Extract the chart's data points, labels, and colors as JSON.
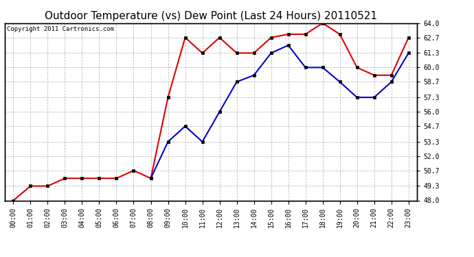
{
  "title": "Outdoor Temperature (vs) Dew Point (Last 24 Hours) 20110521",
  "copyright_text": "Copyright 2011 Cartronics.com",
  "x_labels": [
    "00:00",
    "01:00",
    "02:00",
    "03:00",
    "04:00",
    "05:00",
    "06:00",
    "07:00",
    "08:00",
    "09:00",
    "10:00",
    "11:00",
    "12:00",
    "13:00",
    "14:00",
    "15:00",
    "16:00",
    "17:00",
    "18:00",
    "19:00",
    "20:00",
    "21:00",
    "22:00",
    "23:00"
  ],
  "red_temp": [
    48.0,
    49.3,
    49.3,
    50.0,
    50.0,
    50.0,
    50.0,
    50.7,
    50.0,
    57.3,
    62.7,
    61.3,
    62.7,
    61.3,
    61.3,
    62.7,
    63.0,
    63.0,
    64.0,
    63.0,
    60.0,
    59.3,
    59.3,
    62.7
  ],
  "blue_dew": [
    null,
    null,
    null,
    null,
    null,
    null,
    null,
    null,
    50.0,
    53.3,
    54.7,
    53.3,
    56.0,
    58.7,
    59.3,
    61.3,
    62.0,
    60.0,
    60.0,
    58.7,
    57.3,
    57.3,
    58.7,
    61.3
  ],
  "ylim": [
    48.0,
    64.0
  ],
  "y_ticks": [
    48.0,
    49.3,
    50.7,
    52.0,
    53.3,
    54.7,
    56.0,
    57.3,
    58.7,
    60.0,
    61.3,
    62.7,
    64.0
  ],
  "red_color": "#dd0000",
  "blue_color": "#0000cc",
  "bg_color": "#ffffff",
  "grid_color": "#bbbbbb",
  "title_fontsize": 11,
  "tick_fontsize": 7,
  "copyright_fontsize": 6.5
}
